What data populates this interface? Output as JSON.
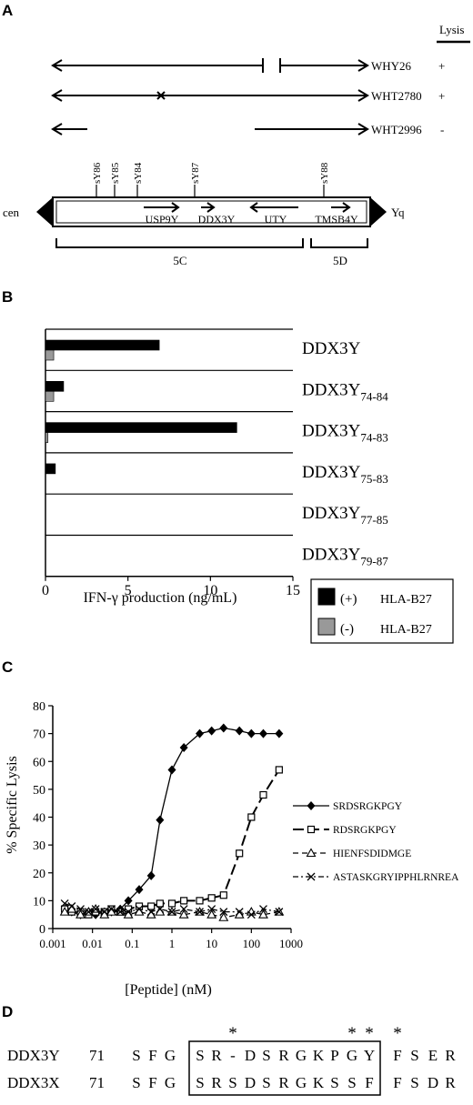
{
  "panel_a": {
    "letter": "A",
    "lysis_header": "Lysis",
    "clones": [
      {
        "name": "WHY26",
        "lysis": "+"
      },
      {
        "name": "WHT2780",
        "lysis": "+"
      },
      {
        "name": "WHT2996",
        "lysis": "-"
      }
    ],
    "markers": [
      "sY86",
      "sY85",
      "sY84",
      "sY87",
      "sY88"
    ],
    "genes": [
      "USP9Y",
      "DDX3Y",
      "UTY",
      "TMSB4Y"
    ],
    "cen_label": "cen",
    "yq_label": "Yq",
    "intervals": [
      "5C",
      "5D"
    ]
  },
  "panel_b": {
    "letter": "B",
    "legend": [
      {
        "sign": "(+)",
        "label": "HLA-B27",
        "color": "#000000"
      },
      {
        "sign": "(-)",
        "label": "HLA-B27",
        "color": "#999999"
      }
    ],
    "chart_data": {
      "type": "bar",
      "orientation": "horizontal",
      "categories": [
        {
          "base": "DDX3Y",
          "sub": ""
        },
        {
          "base": "DDX3Y",
          "sub": "74-84"
        },
        {
          "base": "DDX3Y",
          "sub": "74-83"
        },
        {
          "base": "DDX3Y",
          "sub": "75-83"
        },
        {
          "base": "DDX3Y",
          "sub": "77-85"
        },
        {
          "base": "DDX3Y",
          "sub": "79-87"
        }
      ],
      "series": [
        {
          "values": [
            6.9,
            1.1,
            11.6,
            0.6,
            0,
            0
          ]
        },
        {
          "values": [
            0.5,
            0.5,
            0.15,
            0,
            0,
            0
          ]
        }
      ],
      "xlabel": "IFN-γ production (ng/mL)",
      "xticks": [
        0,
        5,
        10,
        15
      ],
      "xlim": [
        0,
        15
      ]
    }
  },
  "panel_c": {
    "letter": "C",
    "chart_data": {
      "type": "line",
      "xscale": "log",
      "xlabel": "[Peptide] (nM)",
      "ylabel": "% Specific Lysis",
      "xlim": [
        0.001,
        1000
      ],
      "ylim": [
        0,
        80
      ],
      "xtick_labels": [
        "0.001",
        "0.01",
        "0.1",
        "1",
        "10",
        "100",
        "1000"
      ],
      "yticks": [
        0,
        10,
        20,
        30,
        40,
        50,
        60,
        70,
        80
      ],
      "legend_position": "right",
      "series": [
        {
          "name": "SRDSRGKPGY",
          "marker": "diamond",
          "line": "solid",
          "x": [
            0.002,
            0.003,
            0.005,
            0.008,
            0.012,
            0.02,
            0.03,
            0.05,
            0.08,
            0.15,
            0.3,
            0.5,
            1,
            2,
            5,
            10,
            20,
            50,
            100,
            200,
            500
          ],
          "y": [
            7,
            6,
            5,
            6,
            5,
            6,
            6,
            7,
            10,
            14,
            19,
            39,
            57,
            65,
            70,
            71,
            72,
            71,
            70,
            70,
            70
          ]
        },
        {
          "name": "RDSRGKPGY",
          "marker": "square",
          "line": "long-dash",
          "x": [
            0.002,
            0.003,
            0.005,
            0.008,
            0.012,
            0.02,
            0.03,
            0.05,
            0.08,
            0.15,
            0.3,
            0.5,
            1,
            2,
            5,
            10,
            20,
            50,
            100,
            200,
            500
          ],
          "y": [
            7,
            6,
            6,
            5,
            6,
            6,
            7,
            6,
            7,
            8,
            8,
            9,
            9,
            10,
            10,
            11,
            12,
            27,
            40,
            48,
            57
          ]
        },
        {
          "name": "HIENFSDIDMGE",
          "marker": "triangle",
          "line": "dash",
          "x": [
            0.002,
            0.003,
            0.005,
            0.008,
            0.012,
            0.02,
            0.03,
            0.05,
            0.08,
            0.15,
            0.3,
            0.5,
            1,
            2,
            5,
            10,
            20,
            50,
            100,
            200,
            500
          ],
          "y": [
            6,
            7,
            5,
            6,
            7,
            5,
            6,
            6,
            5,
            6,
            5,
            6,
            6,
            5,
            6,
            5,
            4,
            5,
            6,
            5,
            6
          ]
        },
        {
          "name": "ASTASKGRYIPPHLRNREA",
          "marker": "x",
          "line": "dash-dot",
          "x": [
            0.002,
            0.003,
            0.005,
            0.008,
            0.012,
            0.02,
            0.03,
            0.05,
            0.08,
            0.15,
            0.3,
            0.5,
            1,
            2,
            5,
            10,
            20,
            50,
            100,
            200,
            500
          ],
          "y": [
            9,
            8,
            7,
            6,
            7,
            6,
            7,
            6,
            6,
            7,
            6,
            7,
            6,
            7,
            6,
            7,
            6,
            6,
            5,
            7,
            6
          ]
        }
      ]
    }
  },
  "panel_d": {
    "letter": "D",
    "rows": [
      {
        "gene": "DDX3Y",
        "start": "71",
        "residues": [
          "S",
          "F",
          "G",
          "S",
          "R",
          "-",
          "D",
          "S",
          "R",
          "G",
          "K",
          "P",
          "G",
          "Y",
          "F",
          "S",
          "E",
          "R"
        ]
      },
      {
        "gene": "DDX3X",
        "start": "71",
        "residues": [
          "S",
          "F",
          "G",
          "S",
          "R",
          "S",
          "D",
          "S",
          "R",
          "G",
          "K",
          "S",
          "S",
          "F",
          "F",
          "S",
          "D",
          "R"
        ]
      }
    ],
    "star_columns": [
      5,
      12,
      13,
      14
    ],
    "star_symbol": "*"
  }
}
